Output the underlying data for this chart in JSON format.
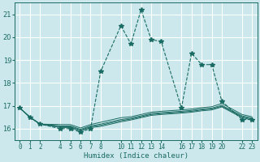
{
  "xlabel": "Humidex (Indice chaleur)",
  "bg_color": "#cce8ec",
  "grid_color": "#ffffff",
  "line_color": "#1a6b63",
  "xlim": [
    -0.5,
    23.5
  ],
  "ylim": [
    15.5,
    21.5
  ],
  "xticks": [
    0,
    1,
    2,
    4,
    5,
    6,
    7,
    8,
    10,
    11,
    12,
    13,
    14,
    16,
    17,
    18,
    19,
    20,
    22,
    23
  ],
  "yticks": [
    16,
    17,
    18,
    19,
    20,
    21
  ],
  "series_main": {
    "x": [
      0,
      1,
      2,
      4,
      5,
      6,
      7,
      8,
      10,
      11,
      12,
      13,
      14,
      16,
      17,
      18,
      19,
      20,
      22,
      23
    ],
    "y": [
      16.9,
      16.5,
      16.2,
      16.0,
      16.0,
      15.85,
      16.0,
      18.5,
      20.5,
      19.7,
      21.2,
      19.9,
      19.8,
      16.9,
      19.3,
      18.8,
      18.8,
      17.2,
      16.4,
      16.4
    ]
  },
  "series_flat": [
    [
      16.9,
      16.5,
      16.2,
      16.05,
      16.05,
      15.9,
      16.05,
      16.1,
      16.3,
      16.38,
      16.48,
      16.58,
      16.62,
      16.68,
      16.72,
      16.78,
      16.82,
      16.95,
      16.48,
      16.38
    ],
    [
      16.9,
      16.5,
      16.2,
      16.08,
      16.08,
      15.93,
      16.08,
      16.15,
      16.35,
      16.42,
      16.52,
      16.62,
      16.66,
      16.72,
      16.76,
      16.82,
      16.86,
      16.98,
      16.52,
      16.42
    ],
    [
      16.9,
      16.5,
      16.2,
      16.12,
      16.12,
      15.97,
      16.12,
      16.2,
      16.4,
      16.46,
      16.56,
      16.66,
      16.7,
      16.76,
      16.8,
      16.86,
      16.9,
      17.02,
      16.56,
      16.46
    ],
    [
      16.9,
      16.5,
      16.2,
      16.18,
      16.18,
      16.03,
      16.18,
      16.28,
      16.48,
      16.52,
      16.62,
      16.72,
      16.76,
      16.82,
      16.86,
      16.92,
      16.96,
      17.1,
      16.62,
      16.52
    ]
  ]
}
